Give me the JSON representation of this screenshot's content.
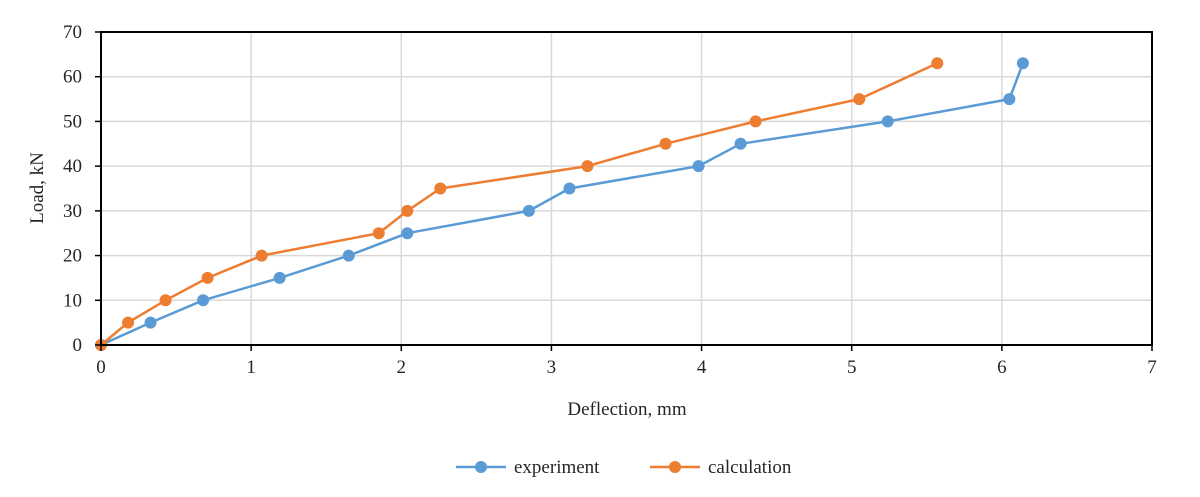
{
  "chart_data": {
    "type": "line",
    "title": "",
    "xlabel": "Deflection, mm",
    "ylabel": "Load, kN",
    "xlim": [
      0,
      7
    ],
    "ylim": [
      0,
      70
    ],
    "xticks": [
      "0",
      "1",
      "2",
      "3",
      "4",
      "5",
      "6",
      "7"
    ],
    "yticks": [
      "0",
      "10",
      "20",
      "30",
      "40",
      "50",
      "60",
      "70"
    ],
    "grid": true,
    "legend_position": "bottom-center",
    "series": [
      {
        "name": "experiment",
        "color": "#5b9bd5",
        "x": [
          0,
          0.33,
          0.68,
          1.19,
          1.65,
          2.04,
          2.85,
          3.12,
          3.98,
          4.26,
          5.24,
          6.05,
          6.14
        ],
        "y": [
          0,
          5,
          10,
          15,
          20,
          25,
          30,
          35,
          40,
          45,
          50,
          55,
          63
        ]
      },
      {
        "name": "calculation",
        "color": "#ed7d31",
        "x": [
          0,
          0.18,
          0.43,
          0.71,
          1.07,
          1.85,
          2.04,
          2.26,
          3.24,
          3.76,
          4.36,
          5.05,
          5.57
        ],
        "y": [
          0,
          5,
          10,
          15,
          20,
          25,
          30,
          35,
          40,
          45,
          50,
          55,
          63
        ]
      }
    ]
  }
}
